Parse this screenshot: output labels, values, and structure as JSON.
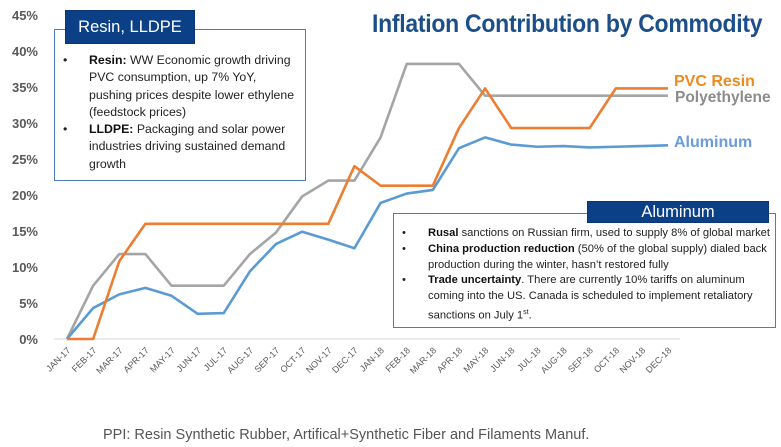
{
  "chart_data": {
    "type": "line",
    "title": "Inflation Contribution by Commodity",
    "xlabel": "",
    "ylabel": "",
    "ylim": [
      0,
      45
    ],
    "yticks": [
      "0%",
      "5%",
      "10%",
      "15%",
      "20%",
      "25%",
      "30%",
      "35%",
      "40%",
      "45%"
    ],
    "ytick_values": [
      0,
      5,
      10,
      15,
      20,
      25,
      30,
      35,
      40,
      45
    ],
    "grid": false,
    "categories": [
      "JAN-17",
      "FEB-17",
      "MAR-17",
      "APR-17",
      "MAY-17",
      "JUN-17",
      "JUL-17",
      "AUG-17",
      "SEP-17",
      "OCT-17",
      "NOV-17",
      "DEC-17",
      "JAN-18",
      "FEB-18",
      "MAR-18",
      "APR-18",
      "MAY-18",
      "JUN-18",
      "JUL-18",
      "AUG-18",
      "SEP-18",
      "OCT-18",
      "NOV-18",
      "DEC-18"
    ],
    "series": [
      {
        "name": "Polyethylene",
        "color": "#a5a5a5",
        "labelColor": "#8c8c8c",
        "values": [
          0,
          7.4,
          11.8,
          11.8,
          7.4,
          7.4,
          7.4,
          11.8,
          14.8,
          19.8,
          22,
          22,
          28,
          38.2,
          38.2,
          38.2,
          33.8,
          33.8,
          33.8,
          33.8,
          33.8,
          33.8,
          33.8,
          33.8
        ]
      },
      {
        "name": "Aluminum",
        "color": "#5b9bd5",
        "labelColor": "#6a9bdc",
        "values": [
          0,
          4.3,
          6.2,
          7.1,
          6,
          3.5,
          3.6,
          9.4,
          13.2,
          14.9,
          13.8,
          12.6,
          18.9,
          20.2,
          20.7,
          26.5,
          28,
          27,
          26.7,
          26.8,
          26.6,
          26.7,
          26.8,
          26.9
        ]
      },
      {
        "name": "PVC Resin",
        "color": "#ed7d31",
        "labelColor": "#ee8a1e",
        "values": [
          0,
          0,
          10.8,
          16,
          16,
          16,
          16,
          16,
          16,
          16,
          16,
          24,
          21.3,
          21.3,
          21.3,
          29.3,
          34.8,
          29.3,
          29.3,
          29.3,
          29.3,
          34.8,
          34.8,
          34.8
        ]
      }
    ],
    "legend": "inline-right"
  },
  "resin_box": {
    "header": "Resin, LLDPE",
    "items": [
      {
        "bold": "Resin:",
        "text": " WW Economic growth driving PVC consumption, up 7% YoY, pushing prices despite lower ethylene (feedstock prices)"
      },
      {
        "bold": "LLDPE:",
        "text": " Packaging and solar power industries driving sustained demand growth"
      }
    ]
  },
  "aluminum_box": {
    "header": "Aluminum",
    "items": [
      {
        "bold": "Rusal",
        "text": " sanctions on Russian firm, used to supply 8% of global market"
      },
      {
        "bold": "China production reduction",
        "text": " (50% of the global supply) dialed back production during the winter, hasn’t restored fully"
      },
      {
        "bold": "Trade uncertainty",
        "text": ".  There are currently 10% tariffs on aluminum coming into the US.  Canada is scheduled to implement retaliatory sanctions on July 1",
        "sup": "st",
        "tail": "."
      }
    ]
  },
  "footer": "PPI: Resin Synthetic Rubber, Artifical+Synthetic Fiber and Filaments Manuf."
}
